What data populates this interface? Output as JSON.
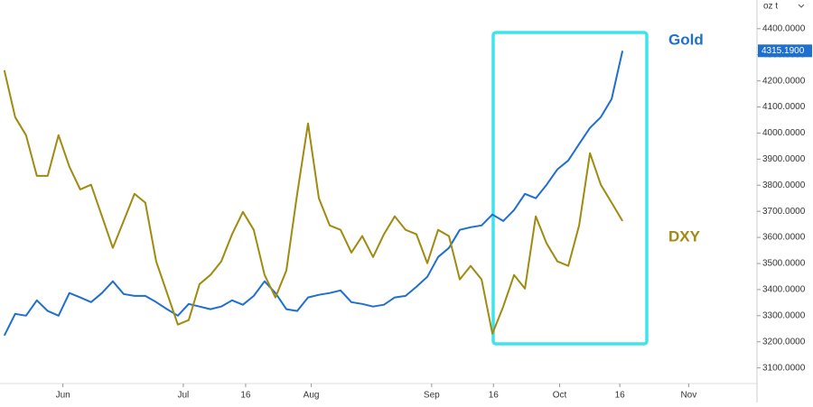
{
  "chart_data": {
    "type": "line",
    "axis_unit": "oz t",
    "xlim": [
      -0.4,
      69.4
    ],
    "xticks": [
      {
        "value": 5.4,
        "label": "Jun"
      },
      {
        "value": 16.5,
        "label": "Jul"
      },
      {
        "value": 22.25,
        "label": "16"
      },
      {
        "value": 28.3,
        "label": "Aug"
      },
      {
        "value": 39.4,
        "label": "Sep"
      },
      {
        "value": 45.1,
        "label": "16"
      },
      {
        "value": 51.2,
        "label": "Oct"
      },
      {
        "value": 56.75,
        "label": "16"
      },
      {
        "value": 63.1,
        "label": "Nov"
      }
    ],
    "ylim": [
      3040,
      4510
    ],
    "yticks": [
      {
        "value": 3100,
        "label": "3100.0000"
      },
      {
        "value": 3200,
        "label": "3200.0000"
      },
      {
        "value": 3300,
        "label": "3300.0000"
      },
      {
        "value": 3400,
        "label": "3400.0000"
      },
      {
        "value": 3500,
        "label": "3500.0000"
      },
      {
        "value": 3600,
        "label": "3600.0000"
      },
      {
        "value": 3700,
        "label": "3700.0000"
      },
      {
        "value": 3800,
        "label": "3800.0000"
      },
      {
        "value": 3900,
        "label": "3900.0000"
      },
      {
        "value": 4000,
        "label": "4000.0000"
      },
      {
        "value": 4100,
        "label": "4100.0000"
      },
      {
        "value": 4200,
        "label": "4200.0000"
      },
      {
        "value": 4300,
        "label": "4300.0000"
      },
      {
        "value": 4400,
        "label": "4400.0000"
      }
    ],
    "series": [
      {
        "name": "Gold",
        "color": "#1f6fd0",
        "price_tag": "4315.1900",
        "values": [
          3224,
          3307,
          3300,
          3359,
          3318,
          3300,
          3387,
          3370,
          3352,
          3387,
          3432,
          3383,
          3376,
          3376,
          3352,
          3325,
          3300,
          3345,
          3335,
          3325,
          3335,
          3359,
          3342,
          3376,
          3432,
          3387,
          3325,
          3318,
          3370,
          3380,
          3387,
          3397,
          3352,
          3345,
          3335,
          3342,
          3370,
          3376,
          3411,
          3449,
          3525,
          3560,
          3629,
          3639,
          3646,
          3688,
          3663,
          3705,
          3767,
          3750,
          3802,
          3861,
          3895,
          3958,
          4020,
          4061,
          4131,
          4315.19
        ]
      },
      {
        "name": "DXY",
        "color": "#a08a10",
        "values": [
          4241,
          4061,
          3992,
          3836,
          3836,
          3992,
          3871,
          3784,
          3802,
          3681,
          3560,
          3663,
          3767,
          3733,
          3508,
          3387,
          3266,
          3283,
          3421,
          3456,
          3508,
          3612,
          3698,
          3629,
          3456,
          3370,
          3473,
          3767,
          4037,
          3750,
          3646,
          3629,
          3542,
          3605,
          3525,
          3612,
          3681,
          3629,
          3612,
          3501,
          3629,
          3605,
          3439,
          3491,
          3439,
          3231,
          3335,
          3456,
          3404,
          3681,
          3577,
          3508,
          3491,
          3646,
          3923,
          3802,
          3733,
          3663
        ]
      }
    ]
  }
}
